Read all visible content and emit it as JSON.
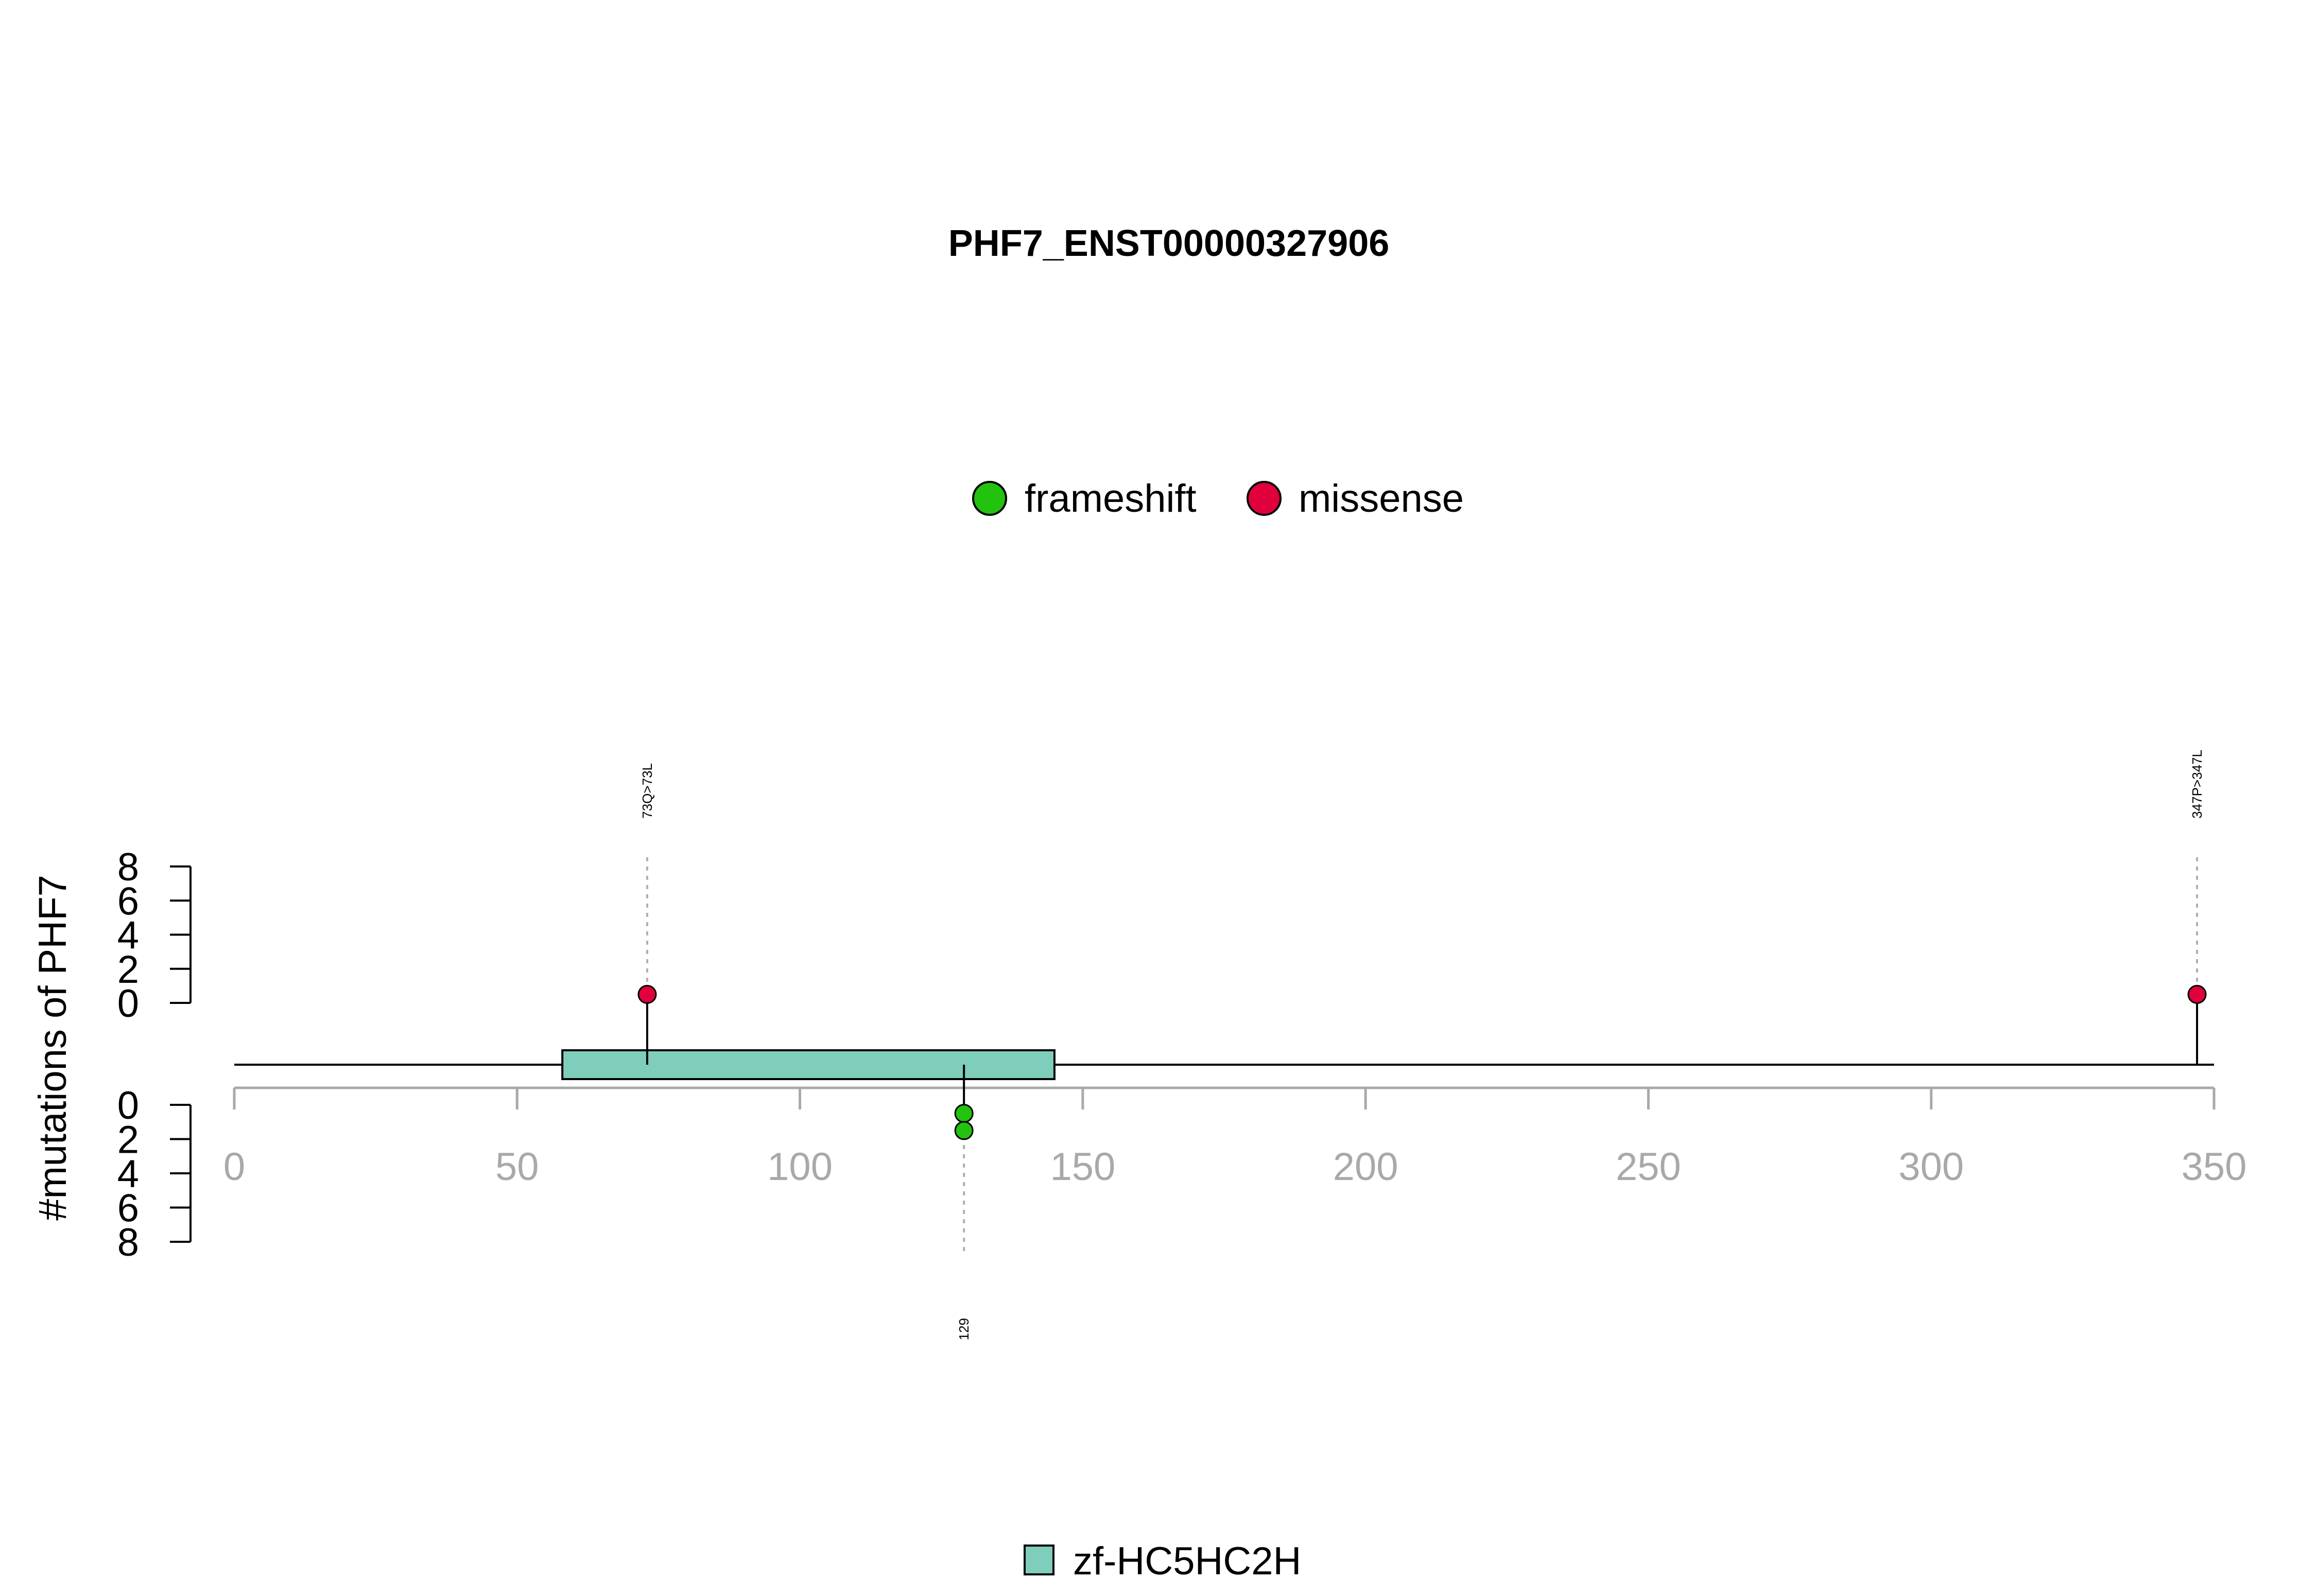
{
  "chart_data": {
    "type": "lollipop",
    "title": "PHF7_ENST00000327906",
    "ylabel": "#mutations of PHF7",
    "protein_length": 350,
    "xlim": [
      0,
      350
    ],
    "x_ticks": [
      0,
      50,
      100,
      150,
      200,
      250,
      300,
      350
    ],
    "y_ticks": [
      0,
      2,
      4,
      6,
      8
    ],
    "ylim": [
      0,
      8
    ],
    "legend": [
      {
        "label": "frameshift",
        "color": "#22c20e"
      },
      {
        "label": "missense",
        "color": "#e0003c"
      }
    ],
    "domain_legend": [
      {
        "label": "zf-HC5HC2H",
        "color": "#7fcdbb"
      }
    ],
    "domains": [
      {
        "name": "zf-HC5HC2H",
        "start": 58,
        "end": 145,
        "color": "#7fcdbb"
      }
    ],
    "mutations": [
      {
        "position": 73,
        "label": "73Q>73L",
        "type": "missense",
        "count": 1,
        "side": "top"
      },
      {
        "position": 347,
        "label": "347P>347L",
        "type": "missense",
        "count": 1,
        "side": "top"
      },
      {
        "position": 129,
        "label": "129",
        "type": "frameshift",
        "count": 2,
        "side": "bottom"
      }
    ]
  }
}
